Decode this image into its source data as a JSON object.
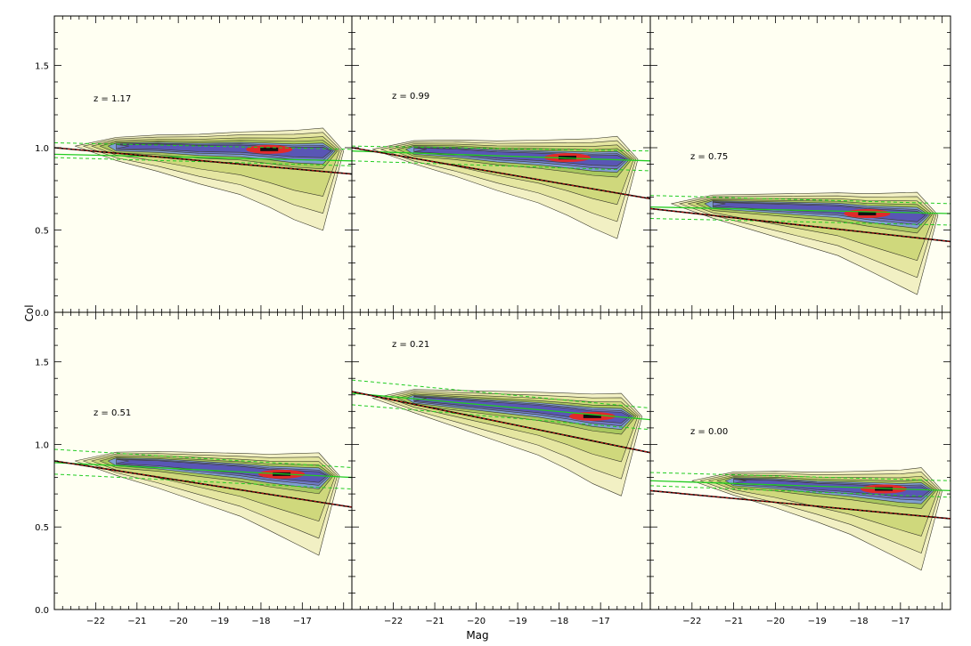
{
  "chart_data": {
    "type": "heatmap",
    "xlabel": "Mag",
    "ylabel": "Col",
    "xlim": [
      -23,
      -15.8
    ],
    "ylim": [
      0.0,
      1.8
    ],
    "xticks": [
      -22,
      -21,
      -20,
      -19,
      -18,
      -17
    ],
    "yticks": [
      0.0,
      0.5,
      1.0,
      1.5
    ],
    "grid": false,
    "panels": [
      {
        "redshift_label": "z = 1.17",
        "ridge": {
          "x": [
            -21.5,
            -20.5,
            -19.5,
            -18.5,
            -17.8,
            -17.2,
            -16.5
          ],
          "y": [
            1.01,
            1.01,
            1.0,
            1.0,
            0.99,
            0.98,
            0.98
          ]
        },
        "core": {
          "x": -17.8,
          "y": 0.99
        },
        "fit_line": {
          "x": [
            -23,
            -15.8
          ],
          "y": [
            0.96,
            0.92
          ]
        },
        "fit_band": {
          "upper": [
            1.03,
            0.99
          ],
          "lower": [
            0.94,
            0.89
          ]
        },
        "cut_line": {
          "x": [
            -23,
            -15.8
          ],
          "y": [
            1.0,
            0.84
          ]
        }
      },
      {
        "redshift_label": "z = 0.99",
        "ridge": {
          "x": [
            -21.5,
            -20.5,
            -19.5,
            -18.5,
            -17.8,
            -17.2,
            -16.6
          ],
          "y": [
            0.99,
            0.98,
            0.96,
            0.95,
            0.94,
            0.93,
            0.93
          ]
        },
        "core": {
          "x": -17.8,
          "y": 0.94
        },
        "fit_line": {
          "x": [
            -23,
            -15.8
          ],
          "y": [
            0.98,
            0.92
          ]
        },
        "fit_band": {
          "upper": [
            1.01,
            0.98
          ],
          "lower": [
            0.92,
            0.86
          ]
        },
        "cut_line": {
          "x": [
            -23,
            -15.8
          ],
          "y": [
            1.0,
            0.69
          ]
        }
      },
      {
        "redshift_label": "z = 0.75",
        "ridge": {
          "x": [
            -21.5,
            -20.5,
            -19.5,
            -18.5,
            -17.8,
            -17.2,
            -16.6
          ],
          "y": [
            0.66,
            0.65,
            0.64,
            0.63,
            0.61,
            0.6,
            0.59
          ]
        },
        "core": {
          "x": -17.8,
          "y": 0.6
        },
        "fit_line": {
          "x": [
            -23,
            -15.8
          ],
          "y": [
            0.64,
            0.6
          ]
        },
        "fit_band": {
          "upper": [
            0.71,
            0.66
          ],
          "lower": [
            0.57,
            0.53
          ]
        },
        "cut_line": {
          "x": [
            -23,
            -15.8
          ],
          "y": [
            0.63,
            0.43
          ]
        }
      },
      {
        "redshift_label": "z = 0.51",
        "ridge": {
          "x": [
            -21.5,
            -20.5,
            -19.5,
            -18.5,
            -17.8,
            -17.2,
            -16.6
          ],
          "y": [
            0.9,
            0.89,
            0.87,
            0.85,
            0.83,
            0.82,
            0.81
          ]
        },
        "core": {
          "x": -17.5,
          "y": 0.82
        },
        "fit_line": {
          "x": [
            -23,
            -15.8
          ],
          "y": [
            0.89,
            0.8
          ]
        },
        "fit_band": {
          "upper": [
            0.97,
            0.86
          ],
          "lower": [
            0.82,
            0.73
          ]
        },
        "cut_line": {
          "x": [
            -23,
            -15.8
          ],
          "y": [
            0.9,
            0.62
          ]
        }
      },
      {
        "redshift_label": "z = 0.21",
        "ridge": {
          "x": [
            -21.5,
            -20.5,
            -19.5,
            -18.5,
            -17.8,
            -17.2,
            -16.5
          ],
          "y": [
            1.28,
            1.26,
            1.24,
            1.22,
            1.2,
            1.18,
            1.17
          ]
        },
        "core": {
          "x": -17.2,
          "y": 1.17
        },
        "fit_line": {
          "x": [
            -23,
            -15.8
          ],
          "y": [
            1.31,
            1.15
          ]
        },
        "fit_band": {
          "upper": [
            1.39,
            1.22
          ],
          "lower": [
            1.24,
            1.09
          ]
        },
        "cut_line": {
          "x": [
            -23,
            -15.8
          ],
          "y": [
            1.32,
            0.95
          ]
        }
      },
      {
        "redshift_label": "z = 0.00",
        "ridge": {
          "x": [
            -21.0,
            -20.0,
            -19.0,
            -18.2,
            -17.6,
            -17.0,
            -16.5
          ],
          "y": [
            0.78,
            0.77,
            0.75,
            0.74,
            0.73,
            0.72,
            0.72
          ]
        },
        "core": {
          "x": -17.4,
          "y": 0.73
        },
        "fit_line": {
          "x": [
            -23,
            -15.8
          ],
          "y": [
            0.78,
            0.72
          ]
        },
        "fit_band": {
          "upper": [
            0.83,
            0.78
          ],
          "lower": [
            0.75,
            0.68
          ]
        },
        "cut_line": {
          "x": [
            -23,
            -15.8
          ],
          "y": [
            0.72,
            0.55
          ]
        }
      }
    ]
  },
  "colors": {
    "background": "#fffff2",
    "contour_levels": [
      "#f2f0c4",
      "#e5e6a1",
      "#cfd87c",
      "#a9c85e",
      "#7f9fd1",
      "#6e78c7",
      "#5956b5"
    ],
    "core": "#e02a2a",
    "core_dark": "#111111",
    "fit": "#22cc22",
    "cut_line": "#8b0000"
  }
}
